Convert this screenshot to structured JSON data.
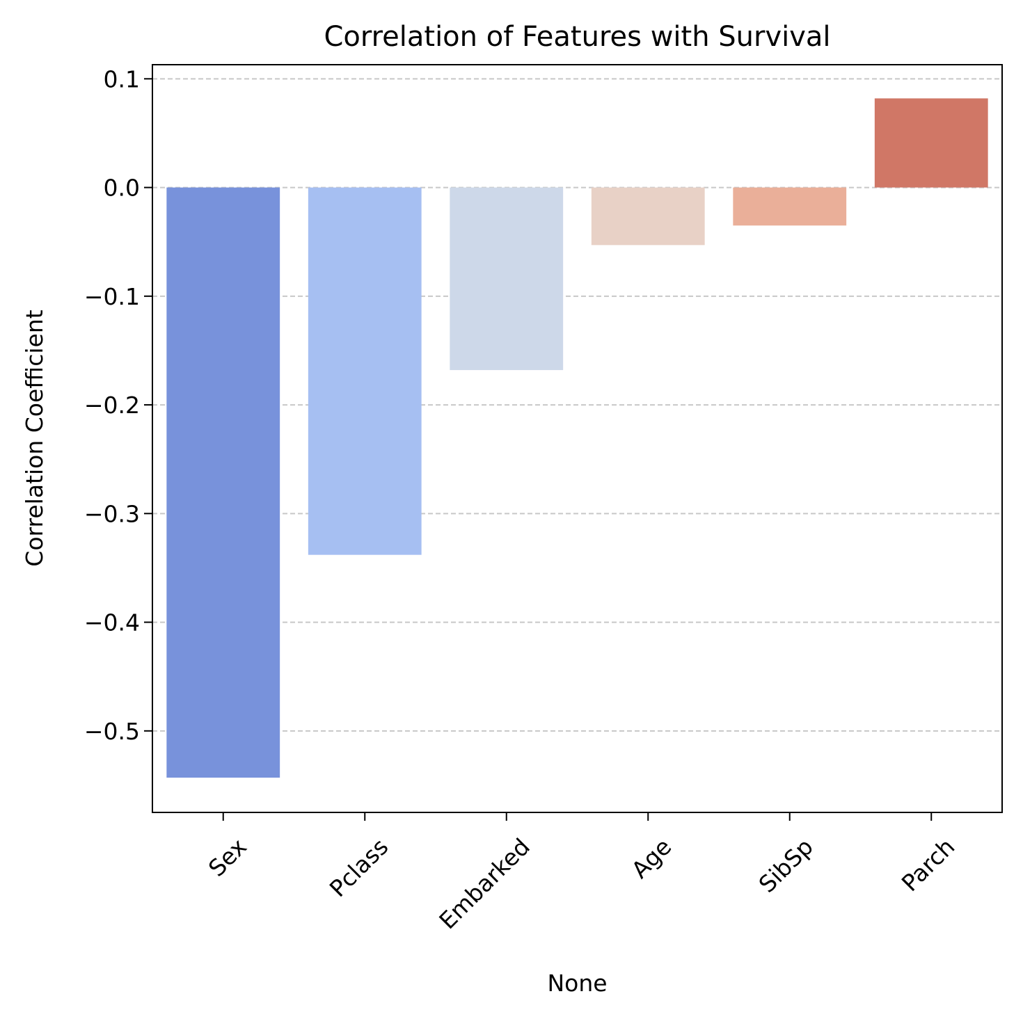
{
  "chart_data": {
    "type": "bar",
    "title": "Correlation of Features with Survival",
    "xlabel": "None",
    "ylabel": "Correlation Coefficient",
    "categories": [
      "Sex",
      "Pclass",
      "Embarked",
      "Age",
      "SibSp",
      "Parch"
    ],
    "values": [
      -0.543,
      -0.338,
      -0.168,
      -0.053,
      -0.035,
      0.082
    ],
    "colors": [
      "#7892db",
      "#a6bff2",
      "#cdd8e9",
      "#e8d1c6",
      "#eaaf99",
      "#d07766"
    ],
    "ylim": [
      -0.575,
      0.113
    ],
    "yticks": [
      0.1,
      0.0,
      -0.1,
      -0.2,
      -0.3,
      -0.4,
      -0.5
    ],
    "ytick_labels": [
      "0.1",
      "0.0",
      "−0.1",
      "−0.2",
      "−0.3",
      "−0.4",
      "−0.5"
    ],
    "grid": "y-dashed",
    "legend": "none"
  }
}
